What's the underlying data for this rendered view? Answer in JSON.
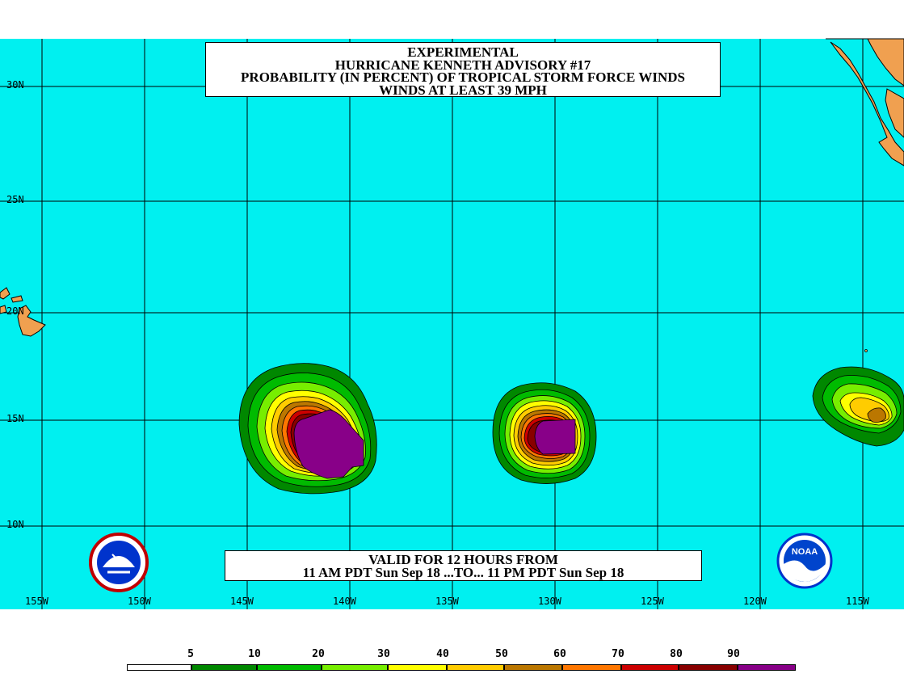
{
  "title_lines": [
    "EXPERIMENTAL",
    "HURRICANE KENNETH ADVISORY #17",
    "PROBABILITY (IN PERCENT) OF TROPICAL STORM FORCE WINDS",
    "WINDS AT LEAST 39 MPH"
  ],
  "valid_lines": [
    "VALID FOR 12 HOURS FROM",
    "11 AM PDT Sun Sep 18 ...TO... 11 PM PDT Sun Sep 18"
  ],
  "lat_labels": [
    "30N",
    "25N",
    "20N",
    "15N",
    "10N"
  ],
  "lon_labels": [
    "155W",
    "150W",
    "145W",
    "140W",
    "135W",
    "130W",
    "125W",
    "120W",
    "115W"
  ],
  "legend": {
    "values": [
      "5",
      "10",
      "20",
      "30",
      "40",
      "50",
      "60",
      "70",
      "80",
      "90"
    ],
    "colors": [
      "#ffffff",
      "#008800",
      "#00bb00",
      "#77ee00",
      "#ffff00",
      "#ffcc00",
      "#bb7700",
      "#ff7700",
      "#cc0000",
      "#880000",
      "#880088"
    ]
  },
  "colors": {
    "ocean": "#00f0f0",
    "land": "#f0a050",
    "grid": "#000000"
  },
  "logos": {
    "left": "national-weather-service-logo",
    "right": "noaa-logo"
  }
}
